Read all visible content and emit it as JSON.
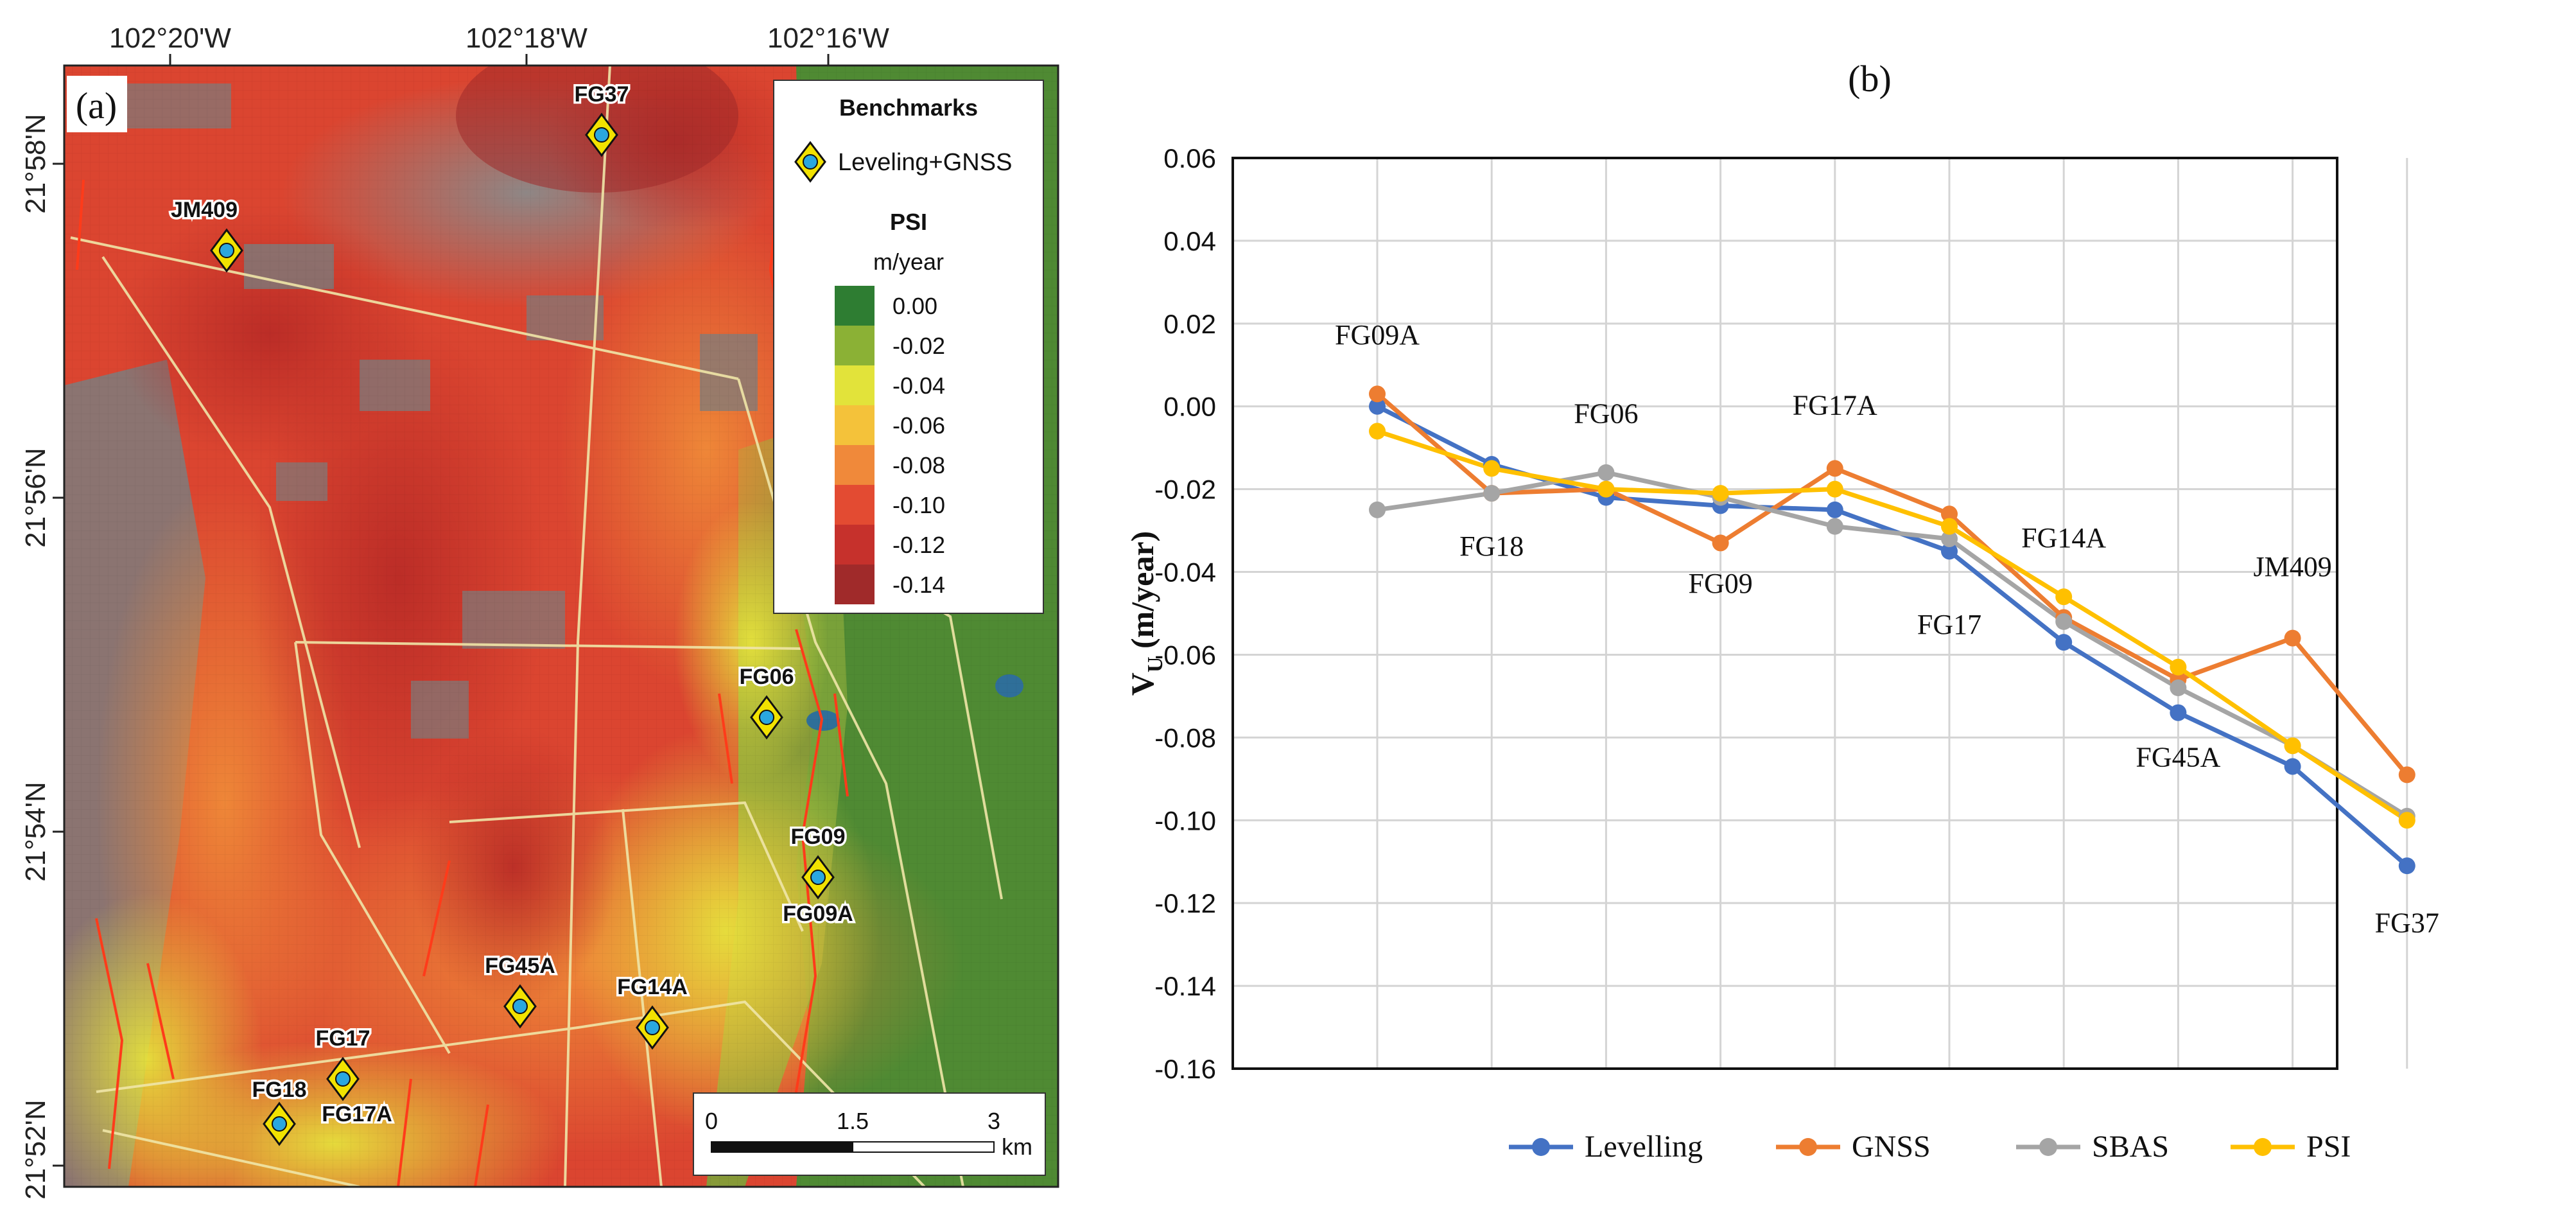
{
  "map": {
    "panel_label": "(a)",
    "lon_ticks": [
      "102°20'W",
      "102°18'W",
      "102°16'W"
    ],
    "lat_ticks": [
      "21°58'N",
      "21°56'N",
      "21°54'N",
      "21°52'N"
    ],
    "benchmarks_title": "Benchmarks",
    "benchmark_type": "Leveling+GNSS",
    "psi_title": "PSI",
    "psi_unit": "m/year",
    "legend_values": [
      "0.00",
      "-0.02",
      "-0.04",
      "-0.06",
      "-0.08",
      "-0.10",
      "-0.12",
      "-0.14"
    ],
    "legend_colors": [
      "#2e7d32",
      "#8bb135",
      "#e2e33a",
      "#f4c23a",
      "#f0893a",
      "#e34b32",
      "#c6312c",
      "#a02a2a"
    ],
    "stations": [
      "FG37",
      "JM409",
      "FG06",
      "FG09",
      "FG09A",
      "FG45A",
      "FG14A",
      "FG17",
      "FG17A",
      "FG18"
    ],
    "scale_ticks": [
      "0",
      "1.5",
      "3"
    ],
    "scale_unit": "km"
  },
  "chart_data": {
    "type": "line",
    "panel_label": "(b)",
    "ylabel_main": "V",
    "ylabel_sub": "U",
    "ylabel_rest": " (m/year)",
    "ylim": [
      -0.16,
      0.06
    ],
    "yticks": [
      "0.06",
      "0.04",
      "0.02",
      "0.00",
      "-0.02",
      "-0.04",
      "-0.06",
      "-0.08",
      "-0.10",
      "-0.12",
      "-0.14",
      "-0.16"
    ],
    "ytick_values": [
      0.06,
      0.04,
      0.02,
      0.0,
      -0.02,
      -0.04,
      -0.06,
      -0.08,
      -0.1,
      -0.12,
      -0.14,
      -0.16
    ],
    "categories": [
      "FG09A",
      "FG18",
      "FG06",
      "FG09",
      "FG17A",
      "FG17",
      "FG14A",
      "FG45A",
      "JM409",
      "FG37"
    ],
    "annotations": [
      {
        "text": "FG09A",
        "index": 0,
        "value": 0.015
      },
      {
        "text": "FG18",
        "index": 1,
        "value": -0.036
      },
      {
        "text": "FG06",
        "index": 2,
        "value": -0.004
      },
      {
        "text": "FG09",
        "index": 3,
        "value": -0.045
      },
      {
        "text": "FG17A",
        "index": 4,
        "value": -0.002
      },
      {
        "text": "FG17",
        "index": 5,
        "value": -0.055
      },
      {
        "text": "FG14A",
        "index": 6,
        "value": -0.034
      },
      {
        "text": "FG45A",
        "index": 7,
        "value": -0.087
      },
      {
        "text": "JM409",
        "index": 8,
        "value": -0.041
      },
      {
        "text": "FG37",
        "index": 9,
        "value": -0.127
      }
    ],
    "series": [
      {
        "name": "Levelling",
        "color": "#4472c4",
        "values": [
          0.0,
          -0.014,
          -0.022,
          -0.024,
          -0.025,
          -0.035,
          -0.057,
          -0.074,
          -0.087,
          -0.111
        ]
      },
      {
        "name": "GNSS",
        "color": "#ed7d31",
        "values": [
          0.003,
          -0.021,
          -0.02,
          -0.033,
          -0.015,
          -0.026,
          -0.051,
          -0.066,
          -0.056,
          -0.089
        ]
      },
      {
        "name": "SBAS",
        "color": "#a5a5a5",
        "values": [
          -0.025,
          -0.021,
          -0.016,
          -0.022,
          -0.029,
          -0.032,
          -0.052,
          -0.068,
          -0.082,
          -0.099
        ]
      },
      {
        "name": "PSI",
        "color": "#ffc000",
        "values": [
          -0.006,
          -0.015,
          -0.02,
          -0.021,
          -0.02,
          -0.029,
          -0.046,
          -0.063,
          -0.082,
          -0.1
        ]
      }
    ]
  }
}
